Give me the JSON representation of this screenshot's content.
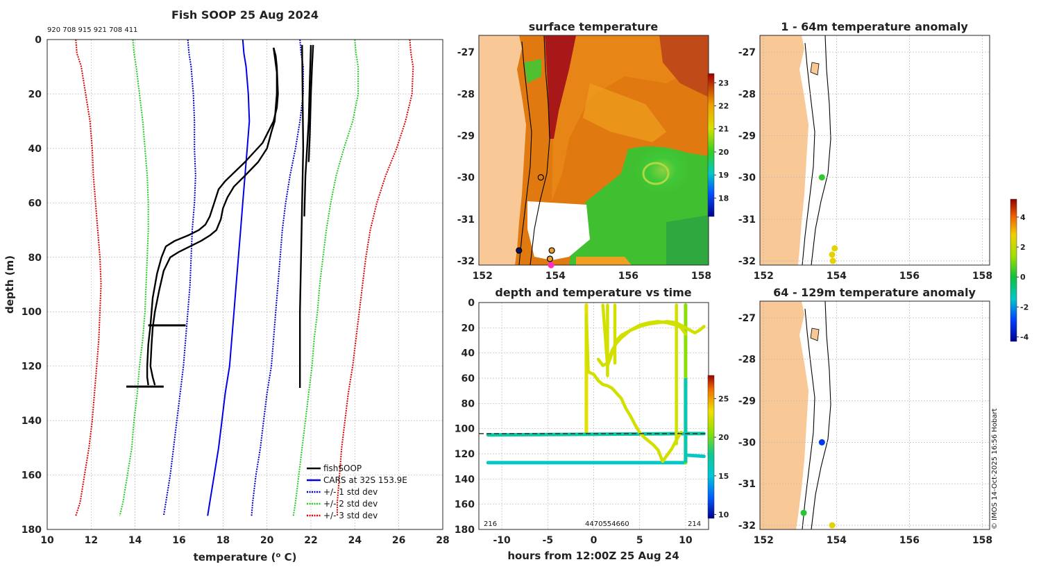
{
  "page": {
    "credit": "© IMOS 14-Oct-2025 16:56 Hobart"
  },
  "chart_data": [
    {
      "id": "profile",
      "type": "line",
      "title": "Fish SOOP 25 Aug 2024",
      "header_ids": "920 708 915 921 708 411",
      "xlabel": "temperature (o C)",
      "xlabel_base": "temperature (",
      "xlabel_sup": "o",
      "xlabel_end": " C)",
      "ylabel": "depth (m)",
      "xlim": [
        10,
        28
      ],
      "ylim": [
        0,
        180
      ],
      "xticks": [
        10,
        12,
        14,
        16,
        18,
        20,
        22,
        24,
        26,
        28
      ],
      "yticks": [
        0,
        20,
        40,
        60,
        80,
        100,
        120,
        140,
        160,
        180
      ],
      "legend": [
        "fishSOOP",
        "CARS at 32S 153.9E",
        "+/- 1 std dev",
        "+/- 2 std dev",
        "+/- 3 std dev"
      ],
      "colors": {
        "fishsoop": "#000000",
        "cars": "#0000e6",
        "std1": "#0000cc",
        "std2": "#22cc22",
        "std3": "#dd0000"
      },
      "depths": [
        0,
        5,
        10,
        20,
        30,
        40,
        50,
        60,
        70,
        80,
        90,
        100,
        110,
        120,
        130,
        140,
        150,
        160,
        170,
        175
      ],
      "cars_mean": [
        18.9,
        18.95,
        19.05,
        19.15,
        19.2,
        19.1,
        19.0,
        18.9,
        18.8,
        18.7,
        18.6,
        18.5,
        18.4,
        18.3,
        18.1,
        17.95,
        17.8,
        17.6,
        17.4,
        17.3
      ],
      "std_plus1": [
        21.5,
        21.55,
        21.65,
        21.65,
        21.5,
        21.3,
        21.05,
        20.85,
        20.7,
        20.6,
        20.5,
        20.4,
        20.3,
        20.2,
        20.0,
        19.85,
        19.7,
        19.5,
        19.35,
        19.3
      ],
      "std_minus1": [
        16.4,
        16.45,
        16.55,
        16.65,
        16.7,
        16.7,
        16.75,
        16.7,
        16.6,
        16.55,
        16.5,
        16.4,
        16.3,
        16.2,
        16.05,
        15.9,
        15.75,
        15.6,
        15.4,
        15.3
      ],
      "std_plus2": [
        24.0,
        24.05,
        24.15,
        24.15,
        23.9,
        23.5,
        23.15,
        22.9,
        22.7,
        22.55,
        22.4,
        22.3,
        22.15,
        22.05,
        21.9,
        21.75,
        21.6,
        21.45,
        21.3,
        21.2
      ],
      "std_minus2": [
        13.9,
        13.95,
        14.05,
        14.2,
        14.35,
        14.45,
        14.55,
        14.6,
        14.6,
        14.55,
        14.5,
        14.45,
        14.35,
        14.2,
        14.1,
        13.95,
        13.85,
        13.65,
        13.45,
        13.3
      ],
      "std_plus3": [
        26.5,
        26.55,
        26.65,
        26.6,
        26.3,
        25.9,
        25.4,
        25.0,
        24.7,
        24.5,
        24.35,
        24.2,
        24.05,
        23.9,
        23.7,
        23.55,
        23.4,
        23.3,
        23.2,
        23.2
      ],
      "std_minus3": [
        11.3,
        11.35,
        11.55,
        11.75,
        11.95,
        12.05,
        12.1,
        12.2,
        12.3,
        12.4,
        12.45,
        12.4,
        12.35,
        12.25,
        12.15,
        12.05,
        11.9,
        11.7,
        11.5,
        11.3
      ],
      "fishsoop_profiles": [
        {
          "name": "descent",
          "depth": [
            3,
            6,
            10,
            20,
            25,
            30,
            38,
            45,
            52,
            55,
            60,
            65,
            68,
            70,
            72,
            74,
            76,
            80,
            86,
            95,
            105,
            112,
            120,
            124,
            127
          ],
          "temp": [
            20.3,
            20.4,
            20.45,
            20.5,
            20.45,
            20.3,
            19.8,
            19.0,
            18.1,
            17.8,
            17.6,
            17.4,
            17.2,
            16.9,
            16.4,
            15.8,
            15.4,
            15.2,
            15.0,
            14.8,
            14.7,
            14.6,
            14.55,
            14.55,
            14.6
          ]
        },
        {
          "name": "ascent",
          "depth": [
            127,
            124,
            120,
            112,
            106,
            100,
            92,
            85,
            80,
            78,
            76,
            74,
            72,
            70,
            66,
            62,
            58,
            54,
            50,
            45,
            40,
            34,
            30,
            25,
            20,
            12,
            6,
            3
          ],
          "temp": [
            14.9,
            14.8,
            14.7,
            14.75,
            14.8,
            14.9,
            15.1,
            15.3,
            15.6,
            16.0,
            16.5,
            17.0,
            17.4,
            17.7,
            17.9,
            18.0,
            18.2,
            18.5,
            19.0,
            19.6,
            20.0,
            20.2,
            20.35,
            20.4,
            20.45,
            20.45,
            20.35,
            20.3
          ]
        },
        {
          "name": "shallow cast 1",
          "depth": [
            2,
            20,
            40,
            60,
            80,
            100,
            115,
            128
          ],
          "temp": [
            21.6,
            21.62,
            21.65,
            21.6,
            21.55,
            21.5,
            21.5,
            21.5
          ]
        },
        {
          "name": "shallow cast 2",
          "depth": [
            2,
            15,
            30,
            50,
            65
          ],
          "temp": [
            22.0,
            21.95,
            21.9,
            21.75,
            21.7
          ]
        },
        {
          "name": "shallow cast 3",
          "depth": [
            2,
            10,
            20,
            35,
            45
          ],
          "temp": [
            22.1,
            22.05,
            22.0,
            21.95,
            21.9
          ]
        }
      ],
      "bottom_spikes": [
        {
          "depth": 105,
          "temp": [
            14.6,
            16.3
          ]
        },
        {
          "depth": 127.5,
          "temp": [
            13.6,
            15.3
          ]
        }
      ]
    },
    {
      "id": "surface-map",
      "type": "heatmap",
      "title": "surface temperature",
      "xticks": [
        152,
        154,
        156,
        158
      ],
      "yticks": [
        -27,
        -28,
        -29,
        -30,
        -31,
        -32
      ],
      "xlim": [
        151.9,
        158.2
      ],
      "ylim": [
        -32.1,
        -26.6
      ],
      "colorbar": {
        "ticks": [
          18,
          19,
          20,
          21,
          22,
          23
        ],
        "range": [
          17.2,
          23.4
        ]
      },
      "markers": [
        {
          "lon": 153.6,
          "lat": -30.0,
          "fill": "none",
          "edge": "#000000"
        },
        {
          "lon": 153.0,
          "lat": -31.75,
          "fill": "#101060",
          "edge": "#000000"
        },
        {
          "lon": 153.9,
          "lat": -31.75,
          "fill": "#e8a030",
          "edge": "#000000"
        },
        {
          "lon": 153.85,
          "lat": -31.95,
          "fill": "#e8a030",
          "edge": "#000000"
        },
        {
          "lon": 153.88,
          "lat": -32.1,
          "fill": "#ff30c0",
          "edge": "#ff30c0"
        }
      ]
    },
    {
      "id": "anomaly-1-64",
      "type": "scatter",
      "title": "1 - 64m temperature anomaly",
      "xticks": [
        152,
        154,
        156,
        158
      ],
      "yticks": [
        -27,
        -28,
        -29,
        -30,
        -31,
        -32
      ],
      "points": [
        {
          "lon": 153.6,
          "lat": -30.0,
          "anomaly": 0.3
        },
        {
          "lon": 153.95,
          "lat": -31.7,
          "anomaly": 2.6
        },
        {
          "lon": 153.88,
          "lat": -31.85,
          "anomaly": 2.6
        },
        {
          "lon": 153.9,
          "lat": -32.0,
          "anomaly": 2.7
        }
      ]
    },
    {
      "id": "anomaly-64-129",
      "type": "scatter",
      "title": "64 - 129m temperature anomaly",
      "xticks": [
        152,
        154,
        156,
        158
      ],
      "yticks": [
        -27,
        -28,
        -29,
        -30,
        -31,
        -32
      ],
      "colorbar": {
        "ticks": [
          -4,
          -2,
          0,
          2,
          4
        ],
        "range": [
          -4.3,
          5.2
        ]
      },
      "points": [
        {
          "lon": 153.6,
          "lat": -30.0,
          "anomaly": -3.0
        },
        {
          "lon": 153.1,
          "lat": -31.7,
          "anomaly": 0.2
        },
        {
          "lon": 153.88,
          "lat": -32.0,
          "anomaly": 2.6
        }
      ]
    },
    {
      "id": "depth-time",
      "type": "scatter",
      "title": "depth and temperature vs time",
      "xlabel": "hours from 12:00Z 25 Aug 24",
      "xlim": [
        -12.5,
        12.5
      ],
      "ylim": [
        0,
        180
      ],
      "xticks": [
        -10,
        -5,
        0,
        5,
        10
      ],
      "yticks": [
        0,
        20,
        40,
        60,
        80,
        100,
        120,
        140,
        160,
        180
      ],
      "colorbar": {
        "ticks": [
          10,
          15,
          20,
          25
        ],
        "range": [
          9.5,
          28
        ]
      },
      "bottom_labels": [
        "216",
        "4470554660",
        "214"
      ],
      "reference_depth": 104,
      "segments": [
        {
          "name": "shallow 1",
          "temp": 23.0,
          "time": [
            -0.8,
            -0.8
          ],
          "depth": [
            2,
            103
          ]
        },
        {
          "name": "long drift 1",
          "temp": 17.0,
          "time": [
            -11.5,
            10.5
          ],
          "depth": [
            105,
            104
          ]
        },
        {
          "name": "long drift 2",
          "temp": 15.8,
          "time": [
            -11.5,
            10.0
          ],
          "depth": [
            127,
            127
          ]
        },
        {
          "name": "late tail",
          "temp": 15.8,
          "time": [
            10.0,
            12.0
          ],
          "depth": [
            121,
            122
          ]
        },
        {
          "name": "deep descent",
          "temp": 20.5,
          "time": [
            10.0,
            10.0
          ],
          "depth": [
            2,
            127
          ]
        },
        {
          "name": "late shallow drift",
          "temp": 17.0,
          "time": [
            10.0,
            12.0
          ],
          "depth": [
            104,
            104
          ]
        }
      ],
      "yellow_tracks": [
        {
          "time": [
            -0.8,
            -0.6,
            0,
            0.5,
            1.0,
            1.5,
            2.0,
            2.5,
            3.0,
            3.5,
            4.0,
            4.5,
            5.0,
            5.5,
            6.0,
            6.5,
            7.0,
            7.5,
            8.0,
            8.5,
            9.0,
            9.5
          ],
          "depth": [
            10,
            55,
            57,
            62,
            65,
            66,
            68,
            72,
            76,
            84,
            90,
            97,
            103,
            107,
            110,
            113,
            117,
            126,
            121,
            116,
            109,
            103
          ]
        },
        {
          "time": [
            0.5,
            1.0,
            1.5,
            2.0,
            2.5,
            3.0,
            3.5,
            4.0,
            5.0,
            6.0,
            7.0,
            8.0,
            9.0,
            9.5,
            10.0
          ],
          "depth": [
            45,
            50,
            48,
            38,
            32,
            28,
            25,
            22,
            18,
            16,
            15,
            16,
            18,
            20,
            25
          ]
        },
        {
          "time": [
            1.0,
            1.5,
            2.0,
            2.5,
            3.0,
            4.0,
            5.0,
            6.0,
            7.0,
            8.0,
            9.0,
            10.0,
            10.5,
            11.0,
            11.5,
            12.0
          ],
          "depth": [
            2,
            50,
            40,
            30,
            26,
            22,
            19,
            17,
            16,
            15,
            16,
            20,
            22,
            24,
            22,
            19
          ]
        },
        {
          "time": [
            1.5,
            1.5
          ],
          "depth": [
            2,
            58
          ]
        },
        {
          "time": [
            2.3,
            2.3
          ],
          "depth": [
            2,
            48
          ]
        },
        {
          "time": [
            9.0,
            9.0
          ],
          "depth": [
            2,
            112
          ]
        }
      ]
    }
  ]
}
